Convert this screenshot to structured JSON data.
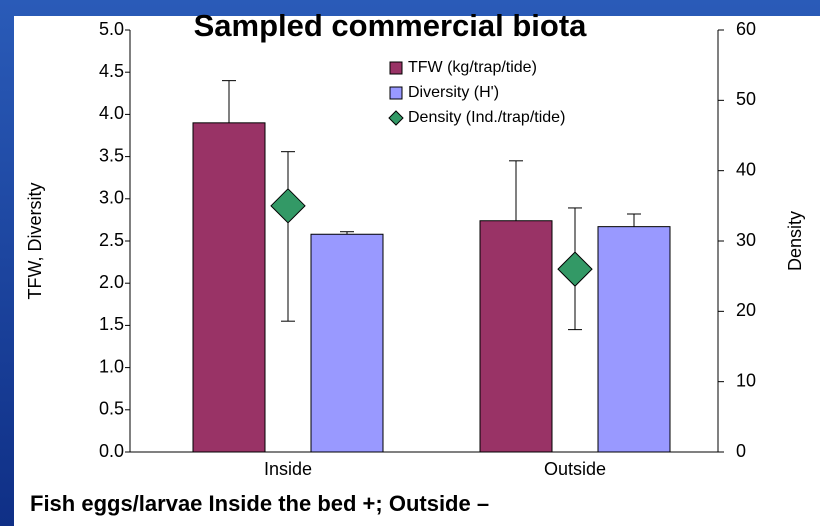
{
  "chart_data": {
    "type": "bar",
    "title": "Sampled commercial biota",
    "categories": [
      "Inside",
      "Outside"
    ],
    "series": [
      {
        "name": "TFW (kg/trap/tide)",
        "type": "bar",
        "color": "#993366",
        "values": [
          3.9,
          2.74
        ],
        "error_high": [
          4.4,
          3.45
        ]
      },
      {
        "name": "Diversity (H')",
        "type": "bar",
        "color": "#9999ff",
        "values": [
          2.58,
          2.67
        ],
        "error_high": [
          2.61,
          2.82
        ]
      },
      {
        "name": "Density (Ind./trap/tide)",
        "type": "scatter",
        "axis": "y2",
        "color": "#339966",
        "values": [
          35,
          26
        ],
        "error_low": [
          18.6,
          17.4
        ],
        "error_high": [
          42.7,
          34.7
        ]
      }
    ],
    "ylabel": "TFW, Diversity",
    "y2label": "Density",
    "ylim": [
      0,
      5
    ],
    "yticks": [
      {
        "value": 0,
        "label": "0.0"
      },
      {
        "value": 0.5,
        "label": "0.5"
      },
      {
        "value": 1,
        "label": "1.0"
      },
      {
        "value": 1.5,
        "label": "1.5"
      },
      {
        "value": 2,
        "label": "2.0"
      },
      {
        "value": 2.5,
        "label": "2.5"
      },
      {
        "value": 3,
        "label": "3.0"
      },
      {
        "value": 3.5,
        "label": "3.5"
      },
      {
        "value": 4,
        "label": "4.0"
      },
      {
        "value": 4.5,
        "label": "4.5"
      },
      {
        "value": 5,
        "label": "5.0"
      }
    ],
    "y2lim": [
      0,
      60
    ],
    "y2ticks": [
      0,
      10,
      20,
      30,
      40,
      50,
      60
    ],
    "annotation": "Fish eggs/larvae    Inside the bed  +; Outside –"
  }
}
